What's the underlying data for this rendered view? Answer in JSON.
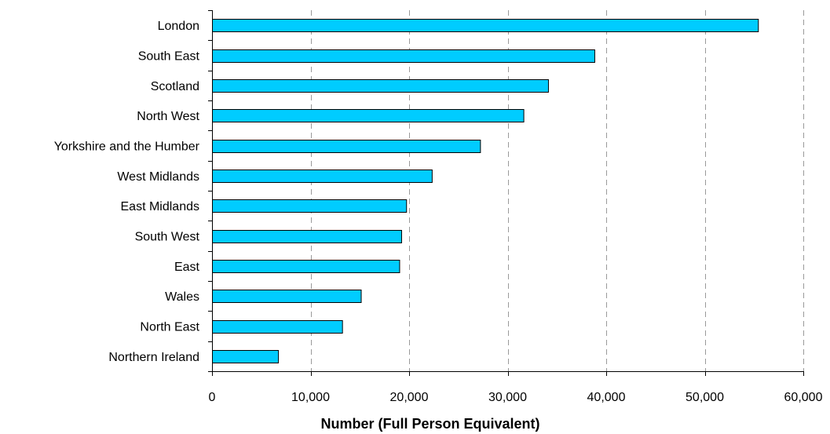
{
  "chart_data": {
    "type": "bar",
    "orientation": "horizontal",
    "title": "",
    "xlabel": "Number (Full Person Equivalent)",
    "ylabel": "",
    "xlim": [
      0,
      60000
    ],
    "x_ticks": [
      0,
      10000,
      20000,
      30000,
      40000,
      50000,
      60000
    ],
    "x_tick_labels": [
      "0",
      "10,000",
      "20,000",
      "30,000",
      "40,000",
      "50,000",
      "60,000"
    ],
    "grid": "vertical dashed",
    "legend": "none",
    "bar_color": "#00CCFF",
    "categories": [
      "London",
      "South East",
      "Scotland",
      "North West",
      "Yorkshire and the Humber",
      "West Midlands",
      "East Midlands",
      "South West",
      "East",
      "Wales",
      "North East",
      "Northern Ireland"
    ],
    "values": [
      55400,
      38800,
      34100,
      31600,
      27200,
      22300,
      19700,
      19200,
      19000,
      15100,
      13200,
      6700
    ]
  }
}
